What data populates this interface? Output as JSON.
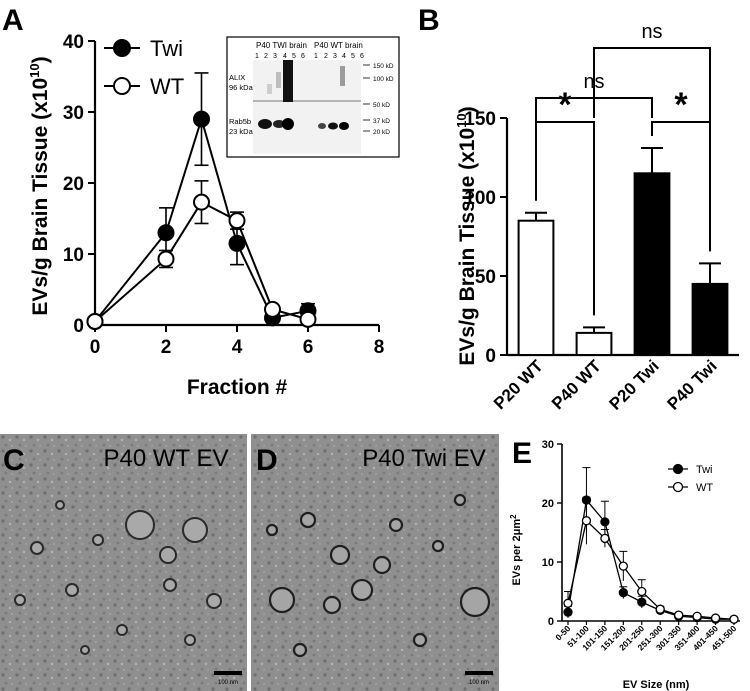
{
  "figure": {
    "panels": {
      "A": {
        "letter": "A"
      },
      "B": {
        "letter": "B"
      },
      "C": {
        "letter": "C",
        "label": "P40 WT EV",
        "scale_bar": "100 nm"
      },
      "D": {
        "letter": "D",
        "label": "P40 Twi EV",
        "scale_bar": "100 nm"
      },
      "E": {
        "letter": "E"
      }
    },
    "blot": {
      "header_left": "P40 TWI brain",
      "header_right": "P40 WT brain",
      "lanes": [
        "1",
        "2",
        "3",
        "4",
        "5",
        "6",
        "1",
        "2",
        "3",
        "4",
        "5",
        "6"
      ],
      "row1_label_line1": "ALIX",
      "row1_label_line2": "96 kDa",
      "row2_label_line1": "Rab5b",
      "row2_label_line2": "23 kDa",
      "markers": [
        "150 kD",
        "100 kD",
        "50 kD",
        "37 kD",
        "20 kD"
      ]
    },
    "colors": {
      "twi": "#000000",
      "wt": "#ffffff",
      "grid": "#000000"
    }
  },
  "chart_data": [
    {
      "panel": "A",
      "type": "line",
      "xlabel": "Fraction #",
      "ylabel": "EVs/g Brain Tissue (x10^10)",
      "ylabel_main": "EVs/g Brain Tissue (x10",
      "ylabel_sup": "10",
      "ylabel_close": ")",
      "xlim": [
        0,
        8
      ],
      "ylim": [
        0,
        40
      ],
      "xticks": [
        "0",
        "2",
        "4",
        "6",
        "8"
      ],
      "yticks": [
        "0",
        "10",
        "20",
        "30",
        "40"
      ],
      "legend_position": "top-left",
      "series": [
        {
          "name": "Twi",
          "x": [
            0,
            2,
            3,
            4,
            5,
            6
          ],
          "y": [
            0.5,
            13,
            29,
            11.5,
            1,
            2
          ],
          "err": [
            0,
            3.5,
            6.5,
            3,
            0.5,
            1
          ]
        },
        {
          "name": "WT",
          "x": [
            0,
            2,
            3,
            4,
            5,
            6
          ],
          "y": [
            0.5,
            9.3,
            17.3,
            14.7,
            2.2,
            0.8
          ],
          "err": [
            0,
            1.2,
            3,
            1.2,
            0.5,
            0.5
          ]
        }
      ]
    },
    {
      "panel": "B",
      "type": "bar",
      "ylabel": "EVs/g Brain Tissue (x10^10)",
      "ylabel_main": "EVs/g Brain Tissue (x10",
      "ylabel_sup": "10",
      "ylabel_close": ")",
      "ylim": [
        0,
        150
      ],
      "yticks": [
        "0",
        "50",
        "100",
        "150"
      ],
      "categories": [
        "P20 WT",
        "P40 WT",
        "P20 Twi",
        "P40 Twi"
      ],
      "values": [
        85,
        14,
        115,
        45
      ],
      "errors": [
        5,
        3.5,
        16,
        13
      ],
      "fills": [
        "#ffffff",
        "#ffffff",
        "#000000",
        "#000000"
      ],
      "significance": [
        {
          "from": 0,
          "to": 1,
          "label": "*"
        },
        {
          "from": 2,
          "to": 3,
          "label": "*"
        },
        {
          "from": 0,
          "to": 2,
          "label": "ns"
        },
        {
          "from": 1,
          "to": 3,
          "label": "ns"
        }
      ]
    },
    {
      "panel": "E",
      "type": "line",
      "xlabel": "EV Size (nm)",
      "ylabel": "EVs per 2μm^2",
      "ylabel_main": "EVs per 2μm",
      "ylabel_sup": "2",
      "ylim": [
        0,
        30
      ],
      "yticks": [
        "0",
        "10",
        "20",
        "30"
      ],
      "categories": [
        "0-50",
        "51-100",
        "101-150",
        "151-200",
        "201-250",
        "251-300",
        "301-350",
        "351-400",
        "401-450",
        "451-500"
      ],
      "legend_position": "top-right",
      "series": [
        {
          "name": "Twi",
          "y": [
            1.5,
            20.5,
            16.8,
            4.8,
            3.2,
            1.8,
            0.8,
            0.6,
            0.3,
            0.3
          ],
          "err": [
            1,
            5.5,
            3.5,
            1,
            1,
            0.4,
            0.2,
            0.2,
            0.1,
            0.1
          ]
        },
        {
          "name": "WT",
          "y": [
            3,
            17,
            14,
            9.3,
            5,
            2,
            1,
            0.8,
            0.5,
            0.3
          ],
          "err": [
            2,
            4,
            1.5,
            2.5,
            2,
            0.5,
            0.3,
            0.2,
            0.2,
            0.1
          ]
        }
      ]
    }
  ]
}
